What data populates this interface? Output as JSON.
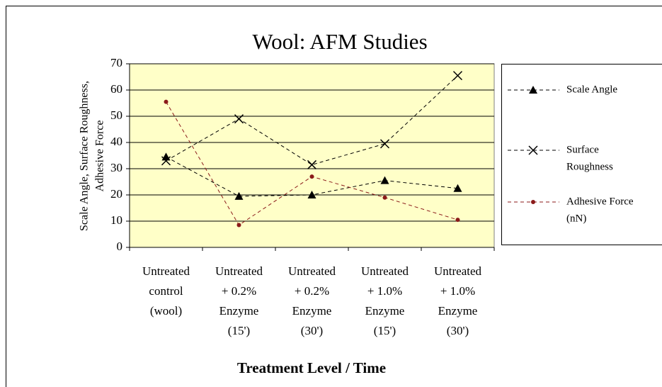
{
  "chart_data": {
    "type": "line",
    "title": "Wool: AFM Studies",
    "x_label": "Treatment Level / Time",
    "y_label": [
      "Scale Angle, Surface Roughness,",
      "Adhesive Force"
    ],
    "categories": [
      [
        "Untreated",
        "control",
        "(wool)"
      ],
      [
        "Untreated",
        "+ 0.2%",
        "Enzyme",
        "(15')"
      ],
      [
        "Untreated",
        "+ 0.2%",
        "Enzyme",
        "(30')"
      ],
      [
        "Untreated",
        "+ 1.0%",
        "Enzyme",
        "(15')"
      ],
      [
        "Untreated",
        "+ 1.0%",
        "Enzyme",
        "(30')"
      ]
    ],
    "series": [
      {
        "name": [
          "Scale Angle"
        ],
        "color": "#000000",
        "marker": "triangle",
        "values": [
          34.5,
          19.5,
          20,
          25.5,
          22.5
        ]
      },
      {
        "name": [
          "Surface",
          "Roughness"
        ],
        "color": "#000000",
        "marker": "x",
        "values": [
          33,
          49,
          31.5,
          39.5,
          65.5
        ]
      },
      {
        "name": [
          "Adhesive Force",
          "(nN)"
        ],
        "color": "#8b1a1a",
        "marker": "circle",
        "values": [
          55.5,
          8.5,
          27,
          19,
          10.5
        ]
      }
    ],
    "ylim": [
      0,
      70
    ],
    "yticks": [
      0,
      10,
      20,
      30,
      40,
      50,
      60,
      70
    ],
    "grid": true,
    "legend": "right",
    "plot_background": "#ffffc8"
  }
}
